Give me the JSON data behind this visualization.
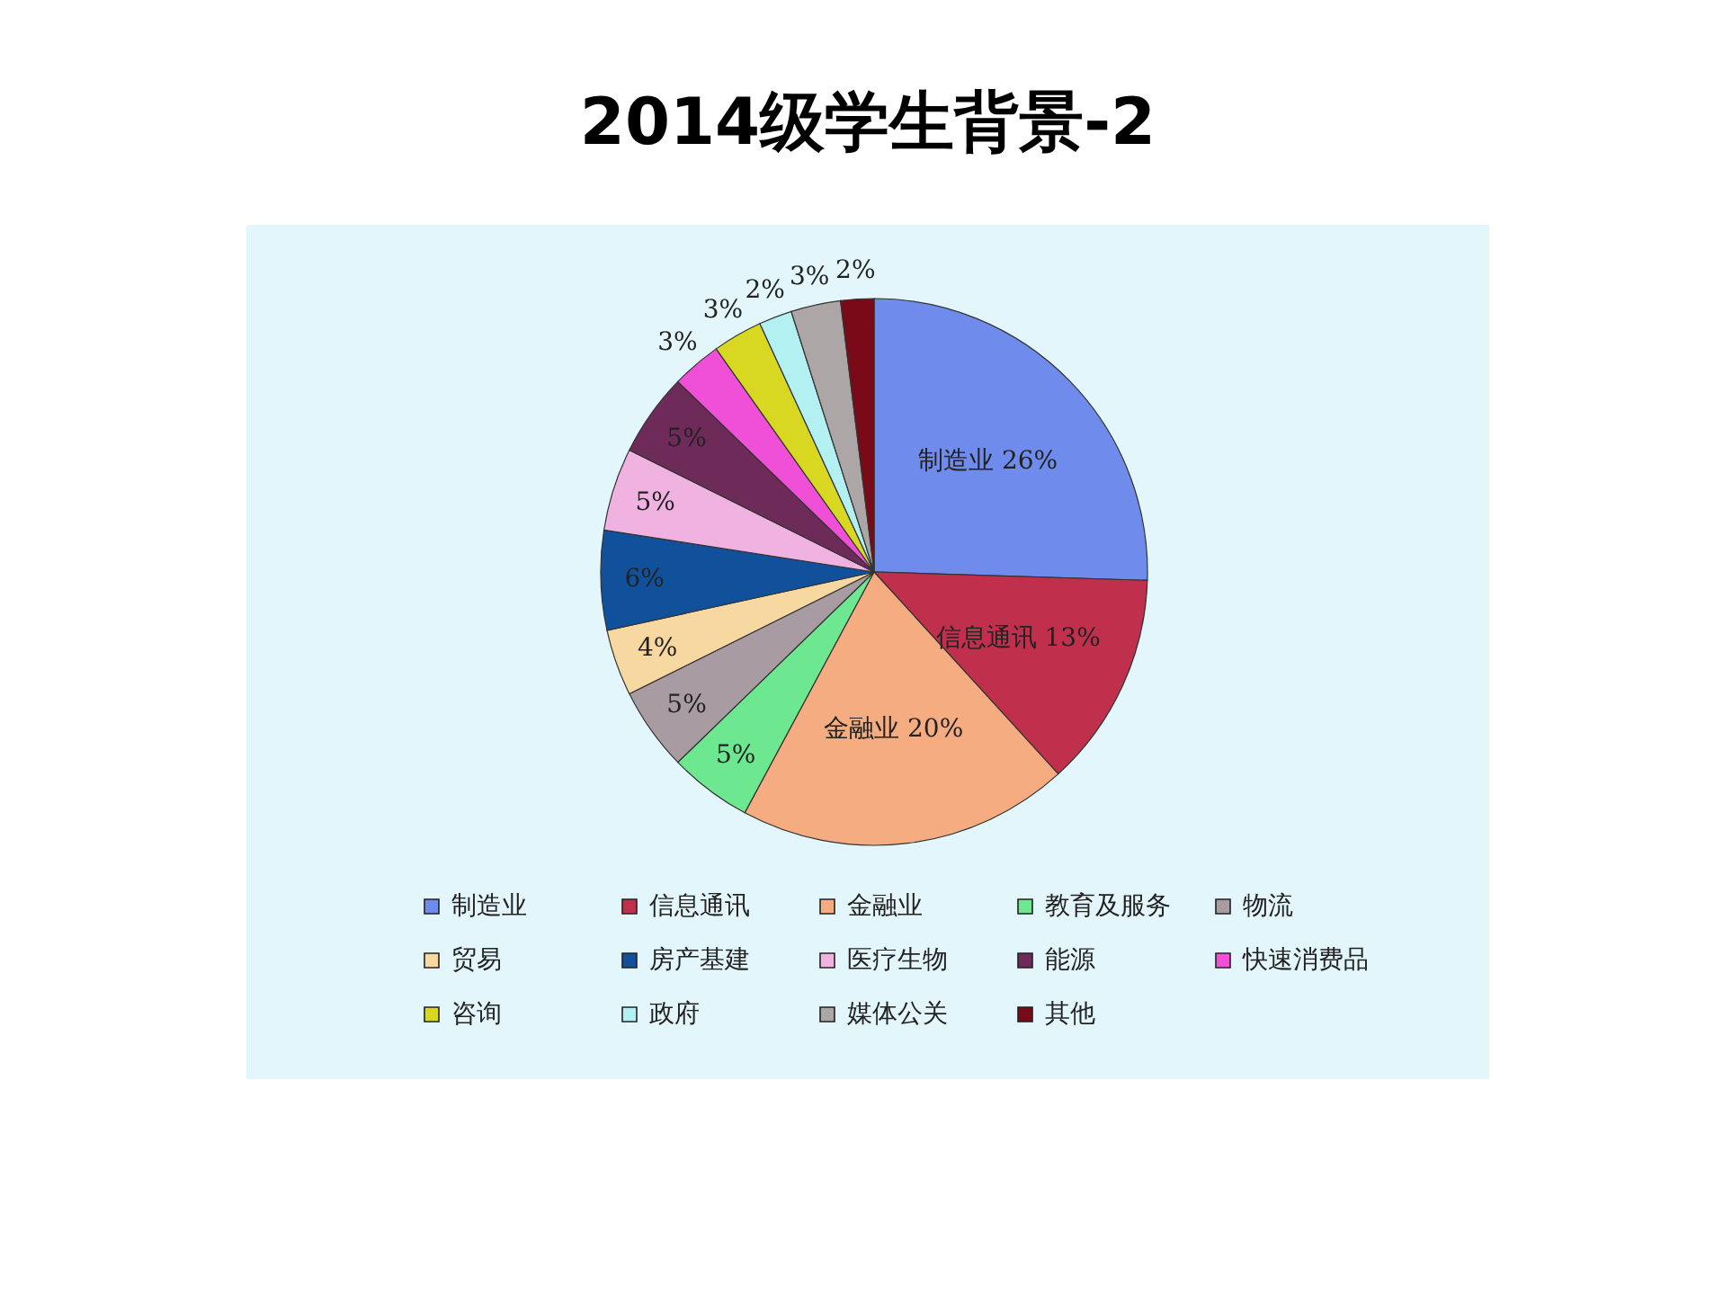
{
  "chart_data": {
    "type": "pie",
    "title": "2014级学生背景-2",
    "categories": [
      "制造业",
      "信息通讯",
      "金融业",
      "教育及服务",
      "物流",
      "贸易",
      "房产基建",
      "医疗生物",
      "能源",
      "快速消费品",
      "咨询",
      "政府",
      "媒体公关",
      "其他"
    ],
    "values": [
      26,
      13,
      20,
      5,
      5,
      4,
      6,
      5,
      5,
      3,
      3,
      2,
      3,
      2
    ],
    "colors": [
      "#6f8cec",
      "#c0304c",
      "#f5ac80",
      "#6ee890",
      "#a89ca2",
      "#f6d8a0",
      "#11519c",
      "#f0b2e0",
      "#6e2a58",
      "#f050d8",
      "#d8d822",
      "#b2f0f2",
      "#aca6a6",
      "#7a0a18"
    ],
    "value_labels": [
      "制造业 26%",
      "信息通讯 13%",
      "金融业 20%",
      "5%",
      "5%",
      "4%",
      "6%",
      "5%",
      "5%",
      "3%",
      "3%",
      "2%",
      "3%",
      "2%"
    ],
    "legend": "bottom"
  }
}
